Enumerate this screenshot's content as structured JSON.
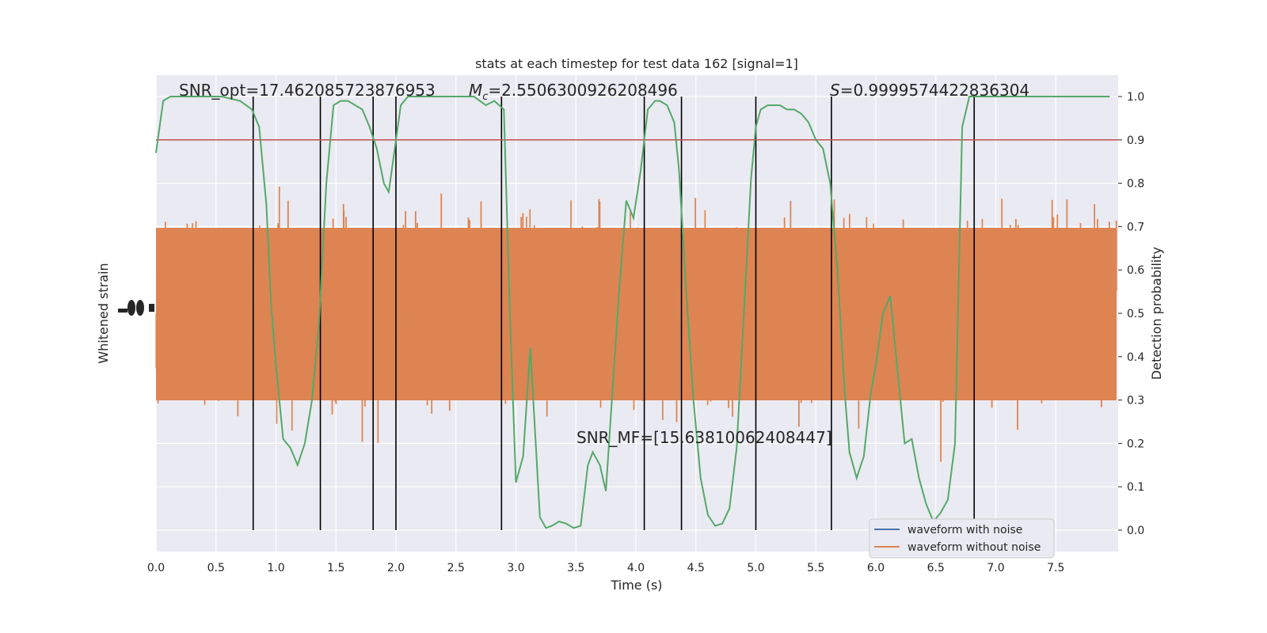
{
  "chart_data": {
    "type": "line",
    "title": "stats at each timestep for test data 162 [signal=1]",
    "xlabel": "Time (s)",
    "ylabel_left": "Whitened strain",
    "ylabel_right": "Detection probability",
    "xlim": [
      0.0,
      8.0
    ],
    "ylim_right": [
      -0.05,
      1.05
    ],
    "x_ticks": [
      "0.0",
      "0.5",
      "1.0",
      "1.5",
      "2.0",
      "2.5",
      "3.0",
      "3.5",
      "4.0",
      "4.5",
      "5.0",
      "5.5",
      "6.0",
      "6.5",
      "7.0",
      "7.5"
    ],
    "y_ticks_right": [
      "0.0",
      "0.1",
      "0.2",
      "0.3",
      "0.4",
      "0.5",
      "0.6",
      "0.7",
      "0.8",
      "0.9",
      "1.0"
    ],
    "grid": true,
    "legend_position": "lower-right",
    "series": [
      {
        "name": "waveform with noise",
        "color": "#4c72b0"
      },
      {
        "name": "waveform without noise",
        "color": "#dd8452"
      }
    ],
    "detection_probability": {
      "color": "#55a868",
      "x": [
        0.0,
        0.06,
        0.12,
        0.25,
        0.4,
        0.55,
        0.7,
        0.8,
        0.86,
        0.92,
        0.96,
        1.0,
        1.06,
        1.12,
        1.18,
        1.24,
        1.3,
        1.36,
        1.42,
        1.48,
        1.54,
        1.6,
        1.66,
        1.72,
        1.78,
        1.84,
        1.9,
        1.94,
        1.98,
        2.04,
        2.1,
        2.2,
        2.35,
        2.5,
        2.65,
        2.75,
        2.82,
        2.9,
        2.95,
        3.0,
        3.06,
        3.12,
        3.2,
        3.25,
        3.3,
        3.36,
        3.42,
        3.48,
        3.54,
        3.6,
        3.64,
        3.7,
        3.75,
        3.8,
        3.86,
        3.92,
        3.98,
        4.04,
        4.1,
        4.16,
        4.2,
        4.26,
        4.32,
        4.36,
        4.42,
        4.48,
        4.54,
        4.6,
        4.66,
        4.72,
        4.78,
        4.84,
        4.9,
        4.96,
        5.0,
        5.04,
        5.1,
        5.15,
        5.2,
        5.26,
        5.32,
        5.38,
        5.44,
        5.5,
        5.56,
        5.62,
        5.68,
        5.74,
        5.78,
        5.84,
        5.9,
        5.96,
        6.0,
        6.06,
        6.12,
        6.18,
        6.24,
        6.3,
        6.36,
        6.42,
        6.48,
        6.54,
        6.6,
        6.66,
        6.72,
        6.78,
        6.84,
        6.9,
        6.96,
        7.5,
        7.95
      ],
      "y": [
        0.87,
        0.99,
        1.0,
        1.0,
        1.0,
        1.0,
        0.99,
        0.97,
        0.93,
        0.75,
        0.52,
        0.38,
        0.21,
        0.19,
        0.15,
        0.2,
        0.3,
        0.48,
        0.8,
        0.98,
        0.99,
        0.99,
        0.98,
        0.97,
        0.93,
        0.88,
        0.8,
        0.78,
        0.86,
        0.98,
        1.0,
        1.0,
        1.0,
        1.0,
        1.0,
        0.98,
        0.99,
        0.97,
        0.5,
        0.11,
        0.17,
        0.42,
        0.03,
        0.005,
        0.01,
        0.02,
        0.015,
        0.005,
        0.01,
        0.15,
        0.18,
        0.15,
        0.09,
        0.3,
        0.55,
        0.76,
        0.72,
        0.83,
        0.97,
        0.99,
        0.99,
        0.98,
        0.94,
        0.83,
        0.55,
        0.3,
        0.12,
        0.035,
        0.01,
        0.015,
        0.05,
        0.19,
        0.5,
        0.81,
        0.93,
        0.97,
        0.98,
        0.98,
        0.98,
        0.97,
        0.97,
        0.96,
        0.94,
        0.9,
        0.88,
        0.8,
        0.6,
        0.32,
        0.18,
        0.12,
        0.17,
        0.32,
        0.38,
        0.5,
        0.54,
        0.37,
        0.2,
        0.21,
        0.12,
        0.06,
        0.02,
        0.04,
        0.07,
        0.2,
        0.93,
        1.0,
        1.0,
        1.0,
        1.0,
        1.0,
        1.0
      ]
    },
    "threshold": {
      "y": 0.9,
      "color": "#c44e52"
    },
    "vertical_markers": [
      0.81,
      1.37,
      1.81,
      2.0,
      2.88,
      4.07,
      4.38,
      5.0,
      5.63,
      6.82
    ],
    "annotations": {
      "snr_opt": "SNR_opt=17.462085723876953",
      "mc_label": "M",
      "mc_sub": "c",
      "mc_value": "=2.5506300926208496",
      "s_label": "S",
      "s_value": "=0.9999574422836304",
      "snr_mf": "SNR_MF=[15.63810062408447]"
    }
  }
}
